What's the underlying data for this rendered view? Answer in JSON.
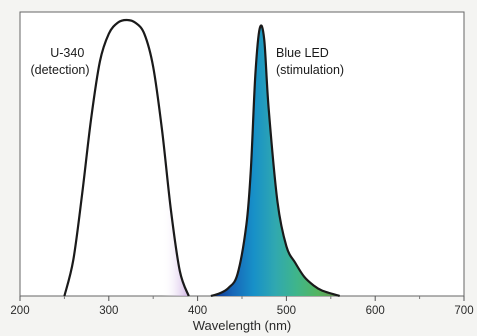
{
  "chart_data": {
    "type": "area",
    "title": "",
    "xlabel": "Wavelength (nm)",
    "ylabel": "",
    "xlim": [
      200,
      700
    ],
    "ylim": [
      0,
      1
    ],
    "x_ticks": [
      "200",
      "300",
      "400",
      "500",
      "600",
      "700"
    ],
    "y_ticks_shown": false,
    "grid": false,
    "legend": "none",
    "series": [
      {
        "name": "U-340 (detection)",
        "x": [
          250,
          260,
          270,
          280,
          290,
          300,
          310,
          320,
          330,
          340,
          350,
          360,
          370,
          380,
          390
        ],
        "y": [
          0.0,
          0.13,
          0.37,
          0.64,
          0.85,
          0.95,
          0.99,
          1.0,
          0.99,
          0.95,
          0.83,
          0.6,
          0.31,
          0.09,
          0.0
        ],
        "color": "#1a1a1a",
        "fill_violet_start": 360
      },
      {
        "name": "Blue LED (stimulation)",
        "x": [
          415,
          425,
          435,
          445,
          455,
          460,
          465,
          470,
          475,
          480,
          490,
          500,
          510,
          520,
          530,
          540,
          560
        ],
        "y": [
          0.0,
          0.01,
          0.03,
          0.08,
          0.26,
          0.46,
          0.8,
          0.97,
          0.93,
          0.68,
          0.34,
          0.18,
          0.12,
          0.07,
          0.04,
          0.02,
          0.0
        ],
        "color": "#1a1a1a",
        "fill_gradient": [
          "#0a2a8a",
          "#1766b8",
          "#1790c8",
          "#30a8b0",
          "#3fb58a",
          "#55b560",
          "#6a8a50"
        ]
      }
    ],
    "annotations": [
      {
        "lines": [
          "U-340",
          "(detection)"
        ]
      },
      {
        "lines": [
          "Blue LED",
          "(stimulation)"
        ]
      }
    ]
  }
}
